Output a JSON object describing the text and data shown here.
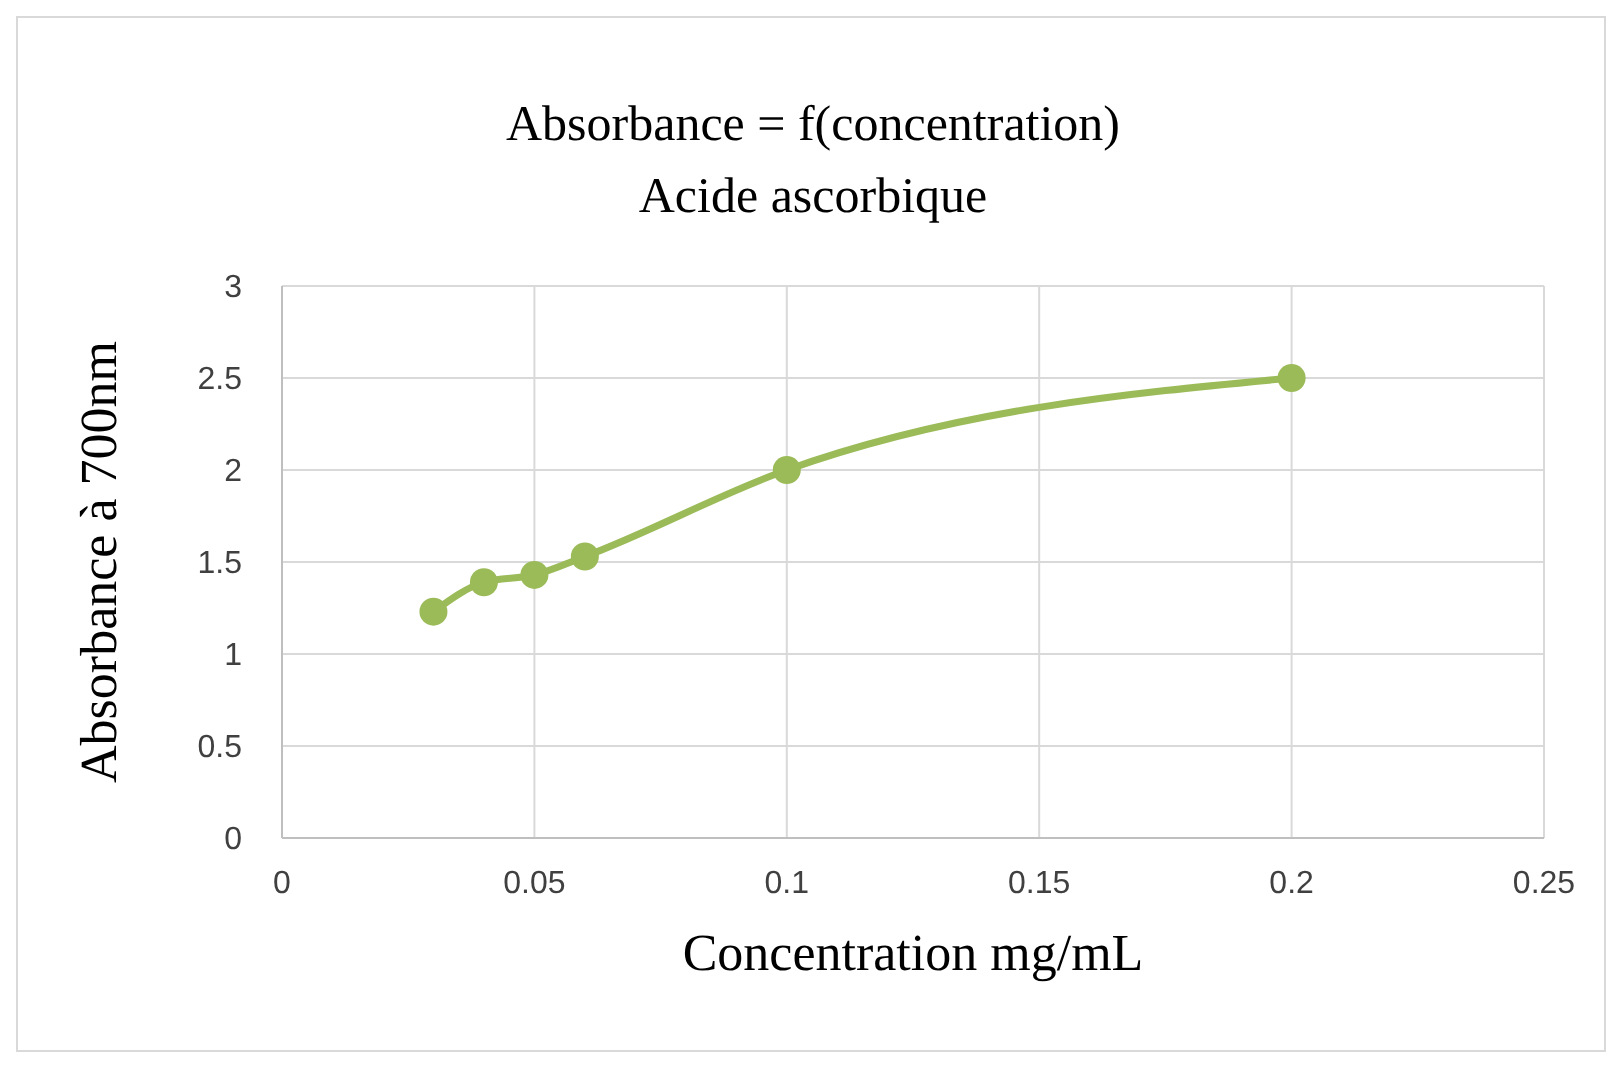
{
  "chart_data": {
    "type": "line",
    "title": "Absorbance = f(concentration)",
    "subtitle": "Acide ascorbique",
    "xlabel": "Concentration mg/mL",
    "ylabel": "Absorbance à 700nm",
    "x": [
      0.03,
      0.04,
      0.05,
      0.06,
      0.1,
      0.2
    ],
    "series": [
      {
        "color": "#9bbb59",
        "values": [
          1.23,
          1.39,
          1.43,
          1.53,
          2.0,
          2.5
        ]
      }
    ],
    "xlim": [
      0,
      0.25
    ],
    "xticks": [
      0,
      0.05,
      0.1,
      0.15,
      0.2,
      0.25
    ],
    "ylim": [
      0,
      3
    ],
    "yticks": [
      0,
      0.5,
      1,
      1.5,
      2,
      2.5,
      3
    ],
    "grid": true,
    "marker": "circle",
    "line_style": "solid"
  }
}
